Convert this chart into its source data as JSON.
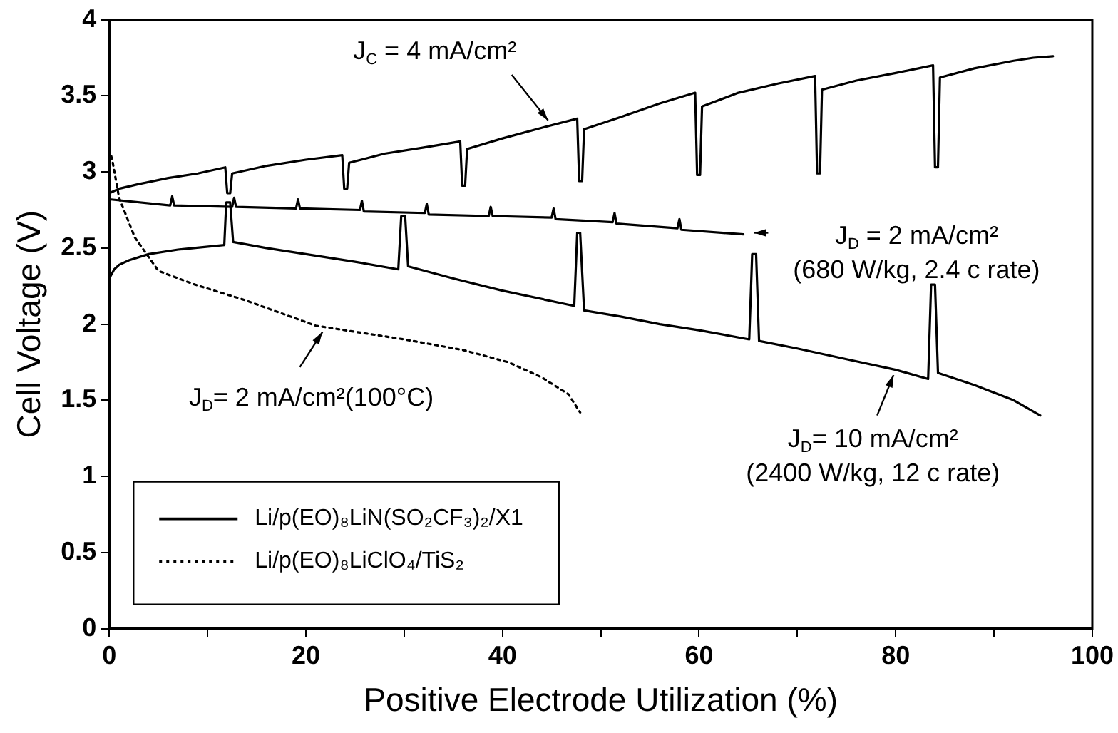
{
  "chart_data": {
    "type": "line",
    "xlabel": "Positive Electrode Utilization (%)",
    "ylabel": "Cell Voltage (V)",
    "xlim": [
      0,
      100
    ],
    "xticks": [
      0,
      {
        "value": 10,
        "label": null
      },
      20,
      {
        "value": 30,
        "label": null
      },
      40,
      {
        "value": 50,
        "label": null
      },
      60,
      {
        "value": 70,
        "label": null
      },
      80,
      {
        "value": 90,
        "label": null
      },
      100
    ],
    "ylim": [
      0,
      4
    ],
    "yticks": [
      0,
      0.5,
      1,
      1.5,
      2,
      2.5,
      3,
      3.5,
      4
    ],
    "grid": false,
    "legend": "bottom left",
    "marker": "none",
    "series": [
      {
        "name": "Li/p(EO)₈LiN(SO₂CF₃)₂/X1",
        "color": "#000000",
        "line_style": "solid",
        "x": [
          0,
          1,
          3,
          6,
          9,
          11.8,
          12,
          12.3,
          12.5,
          16,
          20,
          23.7,
          23.9,
          24.2,
          24.4,
          28,
          32,
          35.7,
          35.9,
          36.2,
          36.4,
          40,
          44,
          47.6,
          47.8,
          48.1,
          48.3,
          52,
          56,
          59.6,
          59.8,
          60.1,
          60.3,
          64,
          68,
          71.8,
          72,
          72.3,
          72.5,
          76,
          80,
          83.8,
          84,
          84.3,
          84.5,
          88,
          92,
          94,
          96
        ],
        "values": [
          2.86,
          2.89,
          2.92,
          2.96,
          2.99,
          3.03,
          2.86,
          2.86,
          2.99,
          3.04,
          3.08,
          3.11,
          2.89,
          2.89,
          3.06,
          3.12,
          3.16,
          3.2,
          2.91,
          2.91,
          3.15,
          3.22,
          3.29,
          3.35,
          2.94,
          2.94,
          3.28,
          3.36,
          3.45,
          3.52,
          2.98,
          2.98,
          3.43,
          3.52,
          3.58,
          3.63,
          2.99,
          2.99,
          3.54,
          3.6,
          3.65,
          3.7,
          3.03,
          3.03,
          3.62,
          3.68,
          3.73,
          3.75,
          3.76
        ]
      },
      {
        "color": "#000000",
        "line_style": "solid",
        "x": [
          0,
          6.2,
          6.4,
          6.6,
          12.5,
          12.7,
          12.9,
          19,
          19.2,
          19.4,
          25.5,
          25.7,
          25.9,
          32.1,
          32.3,
          32.5,
          38.6,
          38.8,
          39,
          45,
          45.2,
          45.4,
          51.2,
          51.4,
          51.6,
          57.8,
          58,
          58.2,
          64.5
        ],
        "values": [
          2.82,
          2.78,
          2.84,
          2.78,
          2.77,
          2.83,
          2.77,
          2.76,
          2.82,
          2.76,
          2.75,
          2.81,
          2.74,
          2.73,
          2.79,
          2.72,
          2.71,
          2.77,
          2.71,
          2.7,
          2.76,
          2.69,
          2.67,
          2.73,
          2.66,
          2.63,
          2.69,
          2.62,
          2.59
        ]
      },
      {
        "color": "#000000",
        "line_style": "solid",
        "x": [
          0,
          0.5,
          1,
          2,
          4,
          7,
          11.7,
          11.9,
          12.3,
          12.6,
          16,
          20,
          25,
          29.4,
          29.7,
          30.1,
          30.4,
          35,
          40,
          47.3,
          47.6,
          47.9,
          48.3,
          52,
          56,
          60,
          65.1,
          65.4,
          65.8,
          66.1,
          70,
          75,
          80,
          83.3,
          83.6,
          84,
          84.3,
          88,
          92,
          94.7
        ],
        "values": [
          2.3,
          2.36,
          2.39,
          2.42,
          2.46,
          2.49,
          2.52,
          2.8,
          2.8,
          2.54,
          2.5,
          2.46,
          2.41,
          2.36,
          2.71,
          2.71,
          2.38,
          2.3,
          2.22,
          2.12,
          2.6,
          2.6,
          2.09,
          2.05,
          2,
          1.96,
          1.9,
          2.46,
          2.46,
          1.89,
          1.84,
          1.77,
          1.7,
          1.64,
          2.26,
          2.26,
          1.68,
          1.6,
          1.5,
          1.4
        ]
      },
      {
        "name": "Li/p(EO)₈LiClO₄/TiS₂",
        "color": "#000000",
        "line_style": "dotted",
        "x": [
          0,
          0.3,
          1,
          2.6,
          5,
          8.7,
          13.7,
          21,
          30,
          36,
          40.6,
          44,
          46.7,
          47.9
        ],
        "values": [
          3.15,
          3.08,
          2.83,
          2.57,
          2.35,
          2.26,
          2.16,
          1.99,
          1.9,
          1.83,
          1.75,
          1.65,
          1.54,
          1.42
        ]
      }
    ],
    "annotations": [
      {
        "text": "J$_{C}$ = 4 mA/cm²",
        "x": 45,
        "y": 3.31
      },
      {
        "text": "J$_{D}$ = 2 mA/cm²\n(680 W/kg, 2.4 c rate)",
        "x": 65,
        "y": 2.6
      },
      {
        "text": "J$_{D}$= 2 mA/cm²(100°C)",
        "x": 22,
        "y": 1.98
      },
      {
        "text": "J$_{D}$= 10 mA/cm²\n(2400 W/kg, 12 c rate)",
        "x": 80,
        "y": 1.7
      }
    ]
  }
}
